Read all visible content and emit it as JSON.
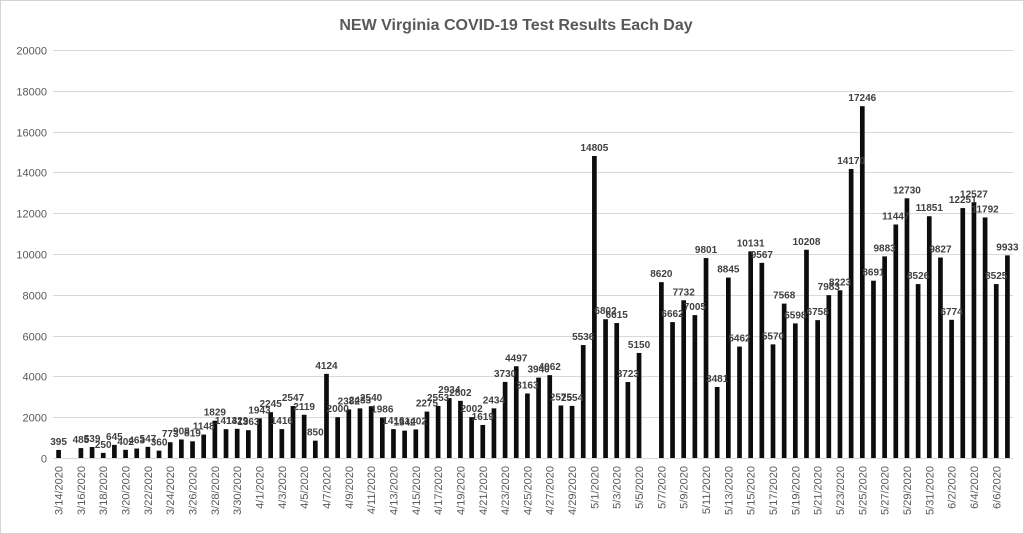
{
  "chart_data": {
    "type": "bar",
    "title": "NEW Virginia COVID-19 Test Results Each Day",
    "xlabel": "",
    "ylabel": "",
    "ylim": [
      0,
      20000
    ],
    "yticks": [
      0,
      2000,
      4000,
      6000,
      8000,
      10000,
      12000,
      14000,
      16000,
      18000,
      20000
    ],
    "grid": true,
    "legend": "none",
    "bar_color": "#0d0d0d",
    "categories": [
      "3/14/2020",
      "3/15/2020",
      "3/16/2020",
      "3/17/2020",
      "3/18/2020",
      "3/19/2020",
      "3/20/2020",
      "3/21/2020",
      "3/22/2020",
      "3/23/2020",
      "3/24/2020",
      "3/25/2020",
      "3/26/2020",
      "3/27/2020",
      "3/28/2020",
      "3/29/2020",
      "3/30/2020",
      "3/31/2020",
      "4/1/2020",
      "4/2/2020",
      "4/3/2020",
      "4/4/2020",
      "4/5/2020",
      "4/6/2020",
      "4/7/2020",
      "4/8/2020",
      "4/9/2020",
      "4/10/2020",
      "4/11/2020",
      "4/12/2020",
      "4/13/2020",
      "4/14/2020",
      "4/15/2020",
      "4/16/2020",
      "4/17/2020",
      "4/18/2020",
      "4/19/2020",
      "4/20/2020",
      "4/21/2020",
      "4/22/2020",
      "4/23/2020",
      "4/24/2020",
      "4/25/2020",
      "4/26/2020",
      "4/27/2020",
      "4/28/2020",
      "4/29/2020",
      "4/30/2020",
      "5/1/2020",
      "5/2/2020",
      "5/3/2020",
      "5/4/2020",
      "5/5/2020",
      "5/6/2020",
      "5/7/2020",
      "5/8/2020",
      "5/9/2020",
      "5/10/2020",
      "5/11/2020",
      "5/12/2020",
      "5/13/2020",
      "5/14/2020",
      "5/15/2020",
      "5/16/2020",
      "5/17/2020",
      "5/18/2020",
      "5/19/2020",
      "5/20/2020",
      "5/21/2020",
      "5/22/2020",
      "5/23/2020",
      "5/24/2020",
      "5/25/2020",
      "5/26/2020",
      "5/27/2020",
      "5/28/2020",
      "5/29/2020",
      "5/30/2020",
      "5/31/2020",
      "6/1/2020",
      "6/2/2020",
      "6/3/2020",
      "6/4/2020",
      "6/5/2020",
      "6/6/2020",
      "6/7/2020"
    ],
    "values": [
      395,
      null,
      485,
      539,
      250,
      645,
      402,
      463,
      547,
      360,
      773,
      908,
      819,
      1148,
      1829,
      1413,
      1429,
      1363,
      1943,
      2245,
      1416,
      2547,
      2119,
      850,
      4124,
      2000,
      2382,
      2433,
      2540,
      1986,
      1416,
      1342,
      1402,
      2275,
      2553,
      2934,
      2802,
      2002,
      1619,
      2434,
      3730,
      4497,
      3163,
      3940,
      4062,
      2575,
      2554,
      5536,
      14805,
      6802,
      6615,
      3723,
      5150,
      null,
      8620,
      6662,
      7732,
      7005,
      9801,
      3481,
      8845,
      5462,
      10131,
      9567,
      5570,
      7568,
      6598,
      10208,
      6758,
      7983,
      8223,
      14170,
      17246,
      8691,
      9883,
      11447,
      12730,
      8526,
      11851,
      9827,
      6774,
      12251,
      12527,
      11792,
      8525,
      9933
    ],
    "data_labels": [
      "395",
      "",
      "485",
      "539",
      "250",
      "645",
      "402",
      "463",
      "547",
      "360",
      "773",
      "908",
      "819",
      "1148",
      "1829",
      "1413",
      "1429",
      "1363",
      "1943",
      "2245",
      "1416",
      "2547",
      "2119",
      "850",
      "4124",
      "2000",
      "2382",
      "2433",
      "2540",
      "1986",
      "1416",
      "1342",
      "1402",
      "2275",
      "2553",
      "2934",
      "2802",
      "2002",
      "1619",
      "2434",
      "3730",
      "4497",
      "3163",
      "3940",
      "4062",
      "2575",
      "2554",
      "5536",
      "14805",
      "6802",
      "6615",
      "3723",
      "5150",
      "",
      "8620",
      "6662",
      "7732",
      "7005",
      "9801",
      "3481",
      "8845",
      "5462",
      "10131",
      "9567",
      "5570",
      "7568",
      "6598",
      "10208",
      "6758",
      "7983",
      "8223",
      "14170",
      "17246",
      "8691",
      "9883",
      "11447",
      "12730",
      "8526",
      "11851",
      "9827",
      "6774",
      "12251",
      "12527",
      "11792",
      "8525",
      "9933"
    ],
    "x_tick_labels": [
      "3/14/2020",
      "3/16/2020",
      "3/18/2020",
      "3/20/2020",
      "3/22/2020",
      "3/24/2020",
      "3/26/2020",
      "3/28/2020",
      "3/30/2020",
      "4/1/2020",
      "4/3/2020",
      "4/5/2020",
      "4/7/2020",
      "4/9/2020",
      "4/11/2020",
      "4/13/2020",
      "4/15/2020",
      "4/17/2020",
      "4/19/2020",
      "4/21/2020",
      "4/23/2020",
      "4/25/2020",
      "4/27/2020",
      "4/29/2020",
      "5/1/2020",
      "5/3/2020",
      "5/5/2020",
      "5/7/2020",
      "5/9/2020",
      "5/11/2020",
      "5/13/2020",
      "5/15/2020",
      "5/17/2020",
      "5/19/2020",
      "5/21/2020",
      "5/23/2020",
      "5/25/2020",
      "5/27/2020",
      "5/29/2020",
      "5/31/2020",
      "6/2/2020",
      "6/4/2020",
      "6/6/2020"
    ]
  }
}
